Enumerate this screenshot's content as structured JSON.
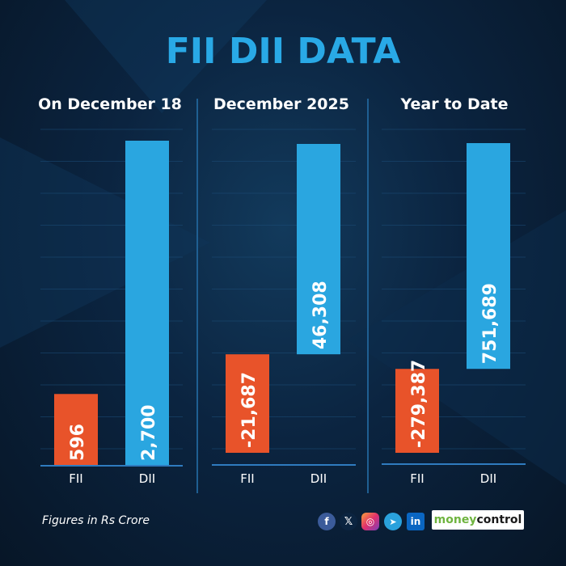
{
  "title": "FII DII DATA",
  "footnote": "Figures in Rs Crore",
  "brand": {
    "part1": "money",
    "part2": "control"
  },
  "social_icons": [
    "facebook-icon",
    "x-icon",
    "instagram-icon",
    "telegram-icon",
    "linkedin-icon"
  ],
  "social_glyphs": {
    "facebook": "f",
    "x": "𝕏",
    "instagram": "◎",
    "telegram": "➤",
    "linkedin": "in"
  },
  "colors": {
    "fii": "#e8532a",
    "dii": "#2aa6e0",
    "title": "#29a9e6",
    "axis": "#2f7bbf"
  },
  "chart_data": [
    {
      "type": "bar",
      "title": "On December 18",
      "categories": [
        "FII",
        "DII"
      ],
      "values": [
        596,
        2700
      ],
      "labels": [
        "596",
        "2,700"
      ],
      "ylim": [
        0,
        2700
      ]
    },
    {
      "type": "bar",
      "title": "December 2025",
      "categories": [
        "FII",
        "DII"
      ],
      "values": [
        -21687,
        46308
      ],
      "labels": [
        "-21,687",
        "46,308"
      ],
      "ylim": [
        -21687,
        46308
      ]
    },
    {
      "type": "bar",
      "title": "Year to Date",
      "categories": [
        "FII",
        "DII"
      ],
      "values": [
        -279387,
        751689
      ],
      "labels": [
        "-279,387",
        "751,689"
      ],
      "ylim": [
        -279387,
        751689
      ]
    }
  ]
}
